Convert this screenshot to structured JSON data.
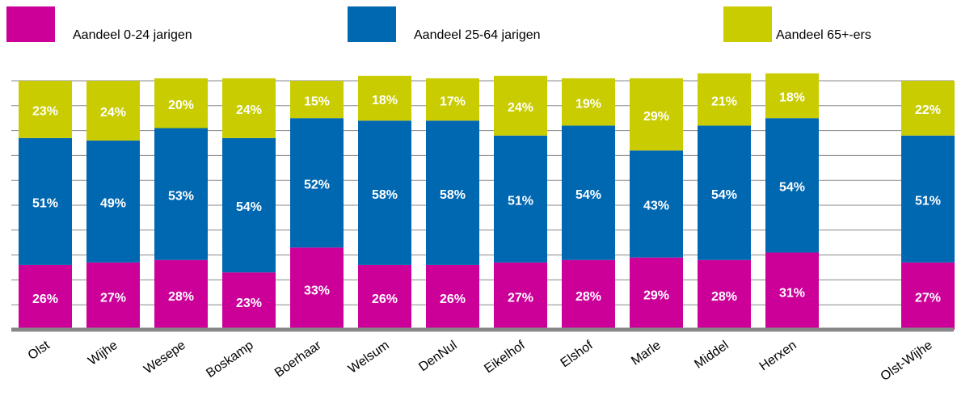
{
  "chart_data": {
    "type": "stacked-bar",
    "categories": [
      "Olst",
      "Wijhe",
      "Wesepe",
      "Boskamp",
      "Boerhaar",
      "Welsum",
      "DenNul",
      "Eikelhof",
      "Elshof",
      "Marle",
      "Middel",
      "Herxen",
      null,
      "Olst-Wijhe"
    ],
    "series": [
      {
        "name": "Aandeel 0-24 jarigen",
        "color": "#cc0099",
        "values": [
          26,
          27,
          28,
          23,
          33,
          26,
          26,
          27,
          28,
          29,
          28,
          31,
          null,
          27
        ],
        "value_labels": [
          "26%",
          "27%",
          "28%",
          "23%",
          "33%",
          "26%",
          "26%",
          "27%",
          "28%",
          "29%",
          "28%",
          "31%",
          null,
          "27%"
        ]
      },
      {
        "name": "Aandeel 25-64 jarigen",
        "color": "#0067b1",
        "values": [
          51,
          49,
          53,
          54,
          52,
          58,
          58,
          51,
          54,
          43,
          54,
          54,
          null,
          51
        ],
        "value_labels": [
          "51%",
          "49%",
          "53%",
          "54%",
          "52%",
          "58%",
          "58%",
          "51%",
          "54%",
          "43%",
          "54%",
          "54%",
          null,
          "51%"
        ]
      },
      {
        "name": "Aandeel 65+-ers",
        "color": "#c8cc00",
        "values": [
          23,
          24,
          20,
          24,
          15,
          18,
          17,
          24,
          19,
          29,
          21,
          18,
          null,
          22
        ],
        "value_labels": [
          "23%",
          "24%",
          "20%",
          "24%",
          "15%",
          "18%",
          "17%",
          "24%",
          "19%",
          "29%",
          "21%",
          "18%",
          null,
          "22%"
        ]
      }
    ],
    "ylim": [
      0,
      100
    ],
    "yticks": [
      0,
      10,
      20,
      30,
      40,
      50,
      60,
      70,
      80,
      90,
      100
    ],
    "grid": true
  }
}
